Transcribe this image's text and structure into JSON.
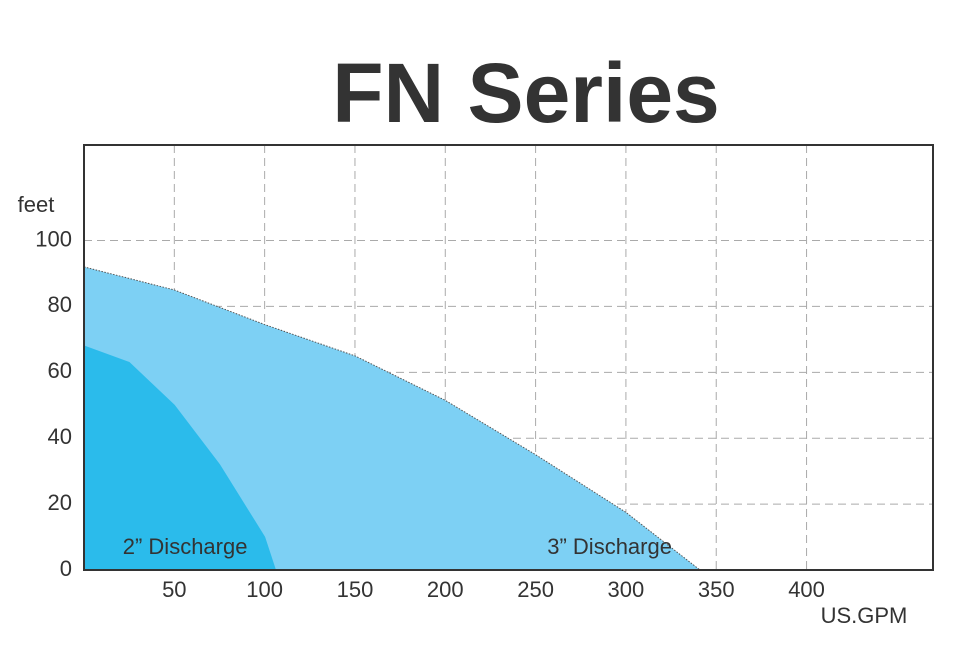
{
  "chart_data": {
    "type": "area",
    "title": "FN Series",
    "y_label": "feet",
    "x_label": "US.GPM",
    "xlim": [
      0,
      470
    ],
    "ylim": [
      0,
      129
    ],
    "xticks": [
      50,
      100,
      150,
      200,
      250,
      300,
      350,
      400
    ],
    "yticks": [
      0,
      20,
      40,
      60,
      80,
      100
    ],
    "grid": true,
    "series": [
      {
        "name": "3” Discharge",
        "color": "#7dd0f4",
        "x": [
          0,
          50,
          100,
          150,
          200,
          250,
          300,
          341
        ],
        "values": [
          92,
          85,
          74.5,
          65,
          51.5,
          35,
          17.5,
          0
        ]
      },
      {
        "name": "2” Discharge",
        "color": "#2bbbeb",
        "x": [
          0,
          25,
          50,
          75,
          100,
          106
        ],
        "values": [
          68,
          63,
          50,
          32,
          10,
          0
        ]
      }
    ]
  }
}
